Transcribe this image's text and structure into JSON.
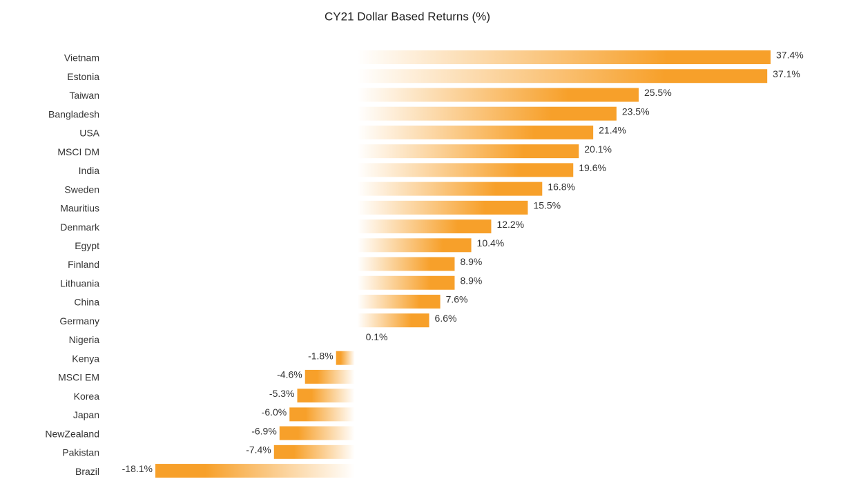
{
  "chart_data": {
    "type": "hbar",
    "title": "CY21 Dollar Based Returns (%)",
    "categories": [
      "Vietnam",
      "Estonia",
      "Taiwan",
      "Bangladesh",
      "USA",
      "MSCI DM",
      "India",
      "Sweden",
      "Mauritius",
      "Denmark",
      "Egypt",
      "Finland",
      "Lithuania",
      "China",
      "Germany",
      "Nigeria",
      "Kenya",
      "MSCI EM",
      "Korea",
      "Japan",
      "NewZealand",
      "Pakistan",
      "Brazil"
    ],
    "values": [
      37.4,
      37.1,
      25.5,
      23.5,
      21.4,
      20.1,
      19.6,
      16.8,
      15.5,
      12.2,
      10.4,
      8.9,
      8.9,
      7.6,
      6.6,
      0.1,
      -1.8,
      -4.6,
      -5.3,
      -6.0,
      -6.9,
      -7.4,
      -18.1
    ],
    "value_labels": [
      "37.4%",
      "37.1%",
      "25.5%",
      "23.5%",
      "21.4%",
      "20.1%",
      "19.6%",
      "16.8%",
      "15.5%",
      "12.2%",
      "10.4%",
      "8.9%",
      "8.9%",
      "7.6%",
      "6.6%",
      "0.1%",
      "-1.8%",
      "-4.6%",
      "-5.3%",
      "-6.0%",
      "-6.9%",
      "-7.4%",
      "-18.1%"
    ],
    "color": "#f7a02a"
  }
}
